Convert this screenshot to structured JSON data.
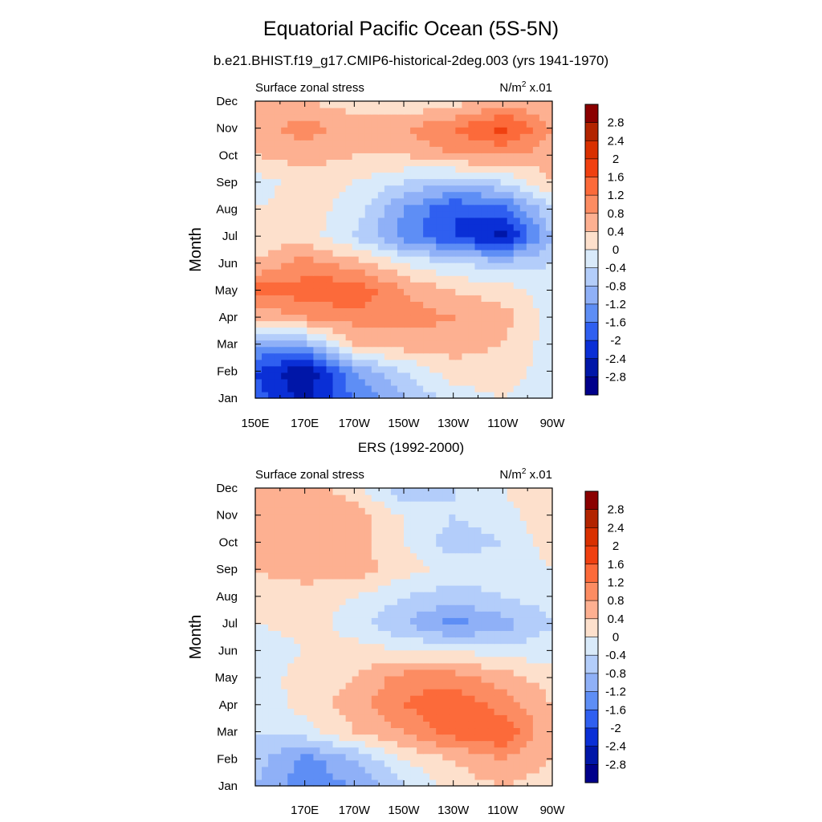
{
  "title": "Equatorial Pacific Ocean (5S-5N)",
  "subtitle": "b.e21.BHIST.f19_g17.CMIP6-historical-2deg.003 (yrs 1941-1970)",
  "second_title": "ERS (1992-2000)",
  "colorbar": {
    "levels": [
      "2.8",
      "2.4",
      "2",
      "1.6",
      "1.2",
      "0.8",
      "0.4",
      "0",
      "-0.4",
      "-0.8",
      "-1.2",
      "-1.6",
      "-2",
      "-2.4",
      "-2.8"
    ],
    "colors": [
      "#8b0000",
      "#b22400",
      "#d93000",
      "#f04010",
      "#fc6a3a",
      "#fc8c62",
      "#fdb091",
      "#fde0cc",
      "#d9eafa",
      "#b3cdfa",
      "#8fb0f7",
      "#5e8ef5",
      "#2f5ff0",
      "#0a2fd6",
      "#0016a8",
      "#00008b"
    ]
  },
  "chart_data": [
    {
      "type": "heatmap",
      "left_label": "Surface zonal stress",
      "right_label_base": "N/m",
      "right_label_sup": "2",
      "right_label_suffix": " x.01",
      "ylabel": "Month",
      "yticks": [
        "Jan",
        "Feb",
        "Mar",
        "Apr",
        "May",
        "Jun",
        "Jul",
        "Aug",
        "Sep",
        "Oct",
        "Nov",
        "Dec"
      ],
      "xticks": [
        "150E",
        "170E",
        "170W",
        "150W",
        "130W",
        "110W",
        "90W"
      ],
      "xlim": [
        150,
        270
      ],
      "x": [
        150,
        170,
        190,
        210,
        230,
        250,
        270
      ],
      "z": [
        [
          -1.8,
          -2.6,
          -1.6,
          -0.8,
          -0.2,
          0.0,
          -0.2
        ],
        [
          -2.0,
          -2.8,
          -1.2,
          -0.4,
          0.2,
          0.2,
          -0.2
        ],
        [
          -1.2,
          -1.0,
          0.4,
          0.6,
          0.6,
          0.4,
          -0.2
        ],
        [
          0.4,
          0.8,
          1.0,
          1.0,
          0.8,
          0.6,
          -0.2
        ],
        [
          1.4,
          1.4,
          1.6,
          0.8,
          0.4,
          0.2,
          -0.2
        ],
        [
          0.4,
          1.0,
          0.6,
          0.0,
          -0.4,
          -0.6,
          -0.4
        ],
        [
          0.2,
          0.2,
          -0.4,
          -1.4,
          -2.0,
          -2.6,
          -0.8
        ],
        [
          0.0,
          0.2,
          -0.2,
          -1.2,
          -2.0,
          -1.8,
          -0.4
        ],
        [
          -0.2,
          0.2,
          0.0,
          -0.4,
          -0.8,
          -0.4,
          0.4
        ],
        [
          0.4,
          0.6,
          0.4,
          0.4,
          0.8,
          0.8,
          0.6
        ],
        [
          0.6,
          1.0,
          0.6,
          0.8,
          1.2,
          1.8,
          0.8
        ],
        [
          0.4,
          0.4,
          0.2,
          0.0,
          0.2,
          0.6,
          0.4
        ]
      ]
    },
    {
      "type": "heatmap",
      "left_label": "Surface zonal stress",
      "right_label_base": "N/m",
      "right_label_sup": "2",
      "right_label_suffix": " x.01",
      "ylabel": "Month",
      "yticks": [
        "Jan",
        "Feb",
        "Mar",
        "Apr",
        "May",
        "Jun",
        "Jul",
        "Aug",
        "Sep",
        "Oct",
        "Nov",
        "Dec"
      ],
      "xticks": [
        "170E",
        "170W",
        "150W",
        "130W",
        "110W",
        "90W"
      ],
      "xlim": [
        150,
        270
      ],
      "x": [
        150,
        170,
        190,
        210,
        230,
        250,
        270
      ],
      "z": [
        [
          -0.8,
          -1.4,
          -1.2,
          -0.4,
          0.2,
          0.4,
          0.2
        ],
        [
          -0.6,
          -1.4,
          -0.8,
          0.0,
          0.4,
          0.8,
          0.4
        ],
        [
          -0.4,
          -0.2,
          0.4,
          0.8,
          1.4,
          1.6,
          0.4
        ],
        [
          -0.4,
          0.2,
          0.6,
          1.2,
          1.6,
          1.0,
          0.4
        ],
        [
          -0.2,
          0.2,
          0.4,
          1.0,
          1.0,
          0.6,
          0.2
        ],
        [
          -0.4,
          0.0,
          0.2,
          0.0,
          0.0,
          -0.2,
          -0.2
        ],
        [
          0.0,
          0.2,
          -0.2,
          -0.8,
          -1.4,
          -1.0,
          -0.4
        ],
        [
          0.2,
          0.2,
          0.0,
          -0.4,
          -0.6,
          -0.4,
          -0.2
        ],
        [
          0.4,
          0.6,
          0.6,
          0.2,
          -0.2,
          -0.2,
          0.0
        ],
        [
          0.4,
          0.8,
          0.6,
          0.0,
          -0.6,
          -0.4,
          0.2
        ],
        [
          0.6,
          0.8,
          0.6,
          0.0,
          -0.4,
          -0.2,
          0.4
        ],
        [
          0.4,
          0.6,
          0.2,
          -0.8,
          -0.4,
          0.0,
          0.4
        ]
      ]
    }
  ]
}
